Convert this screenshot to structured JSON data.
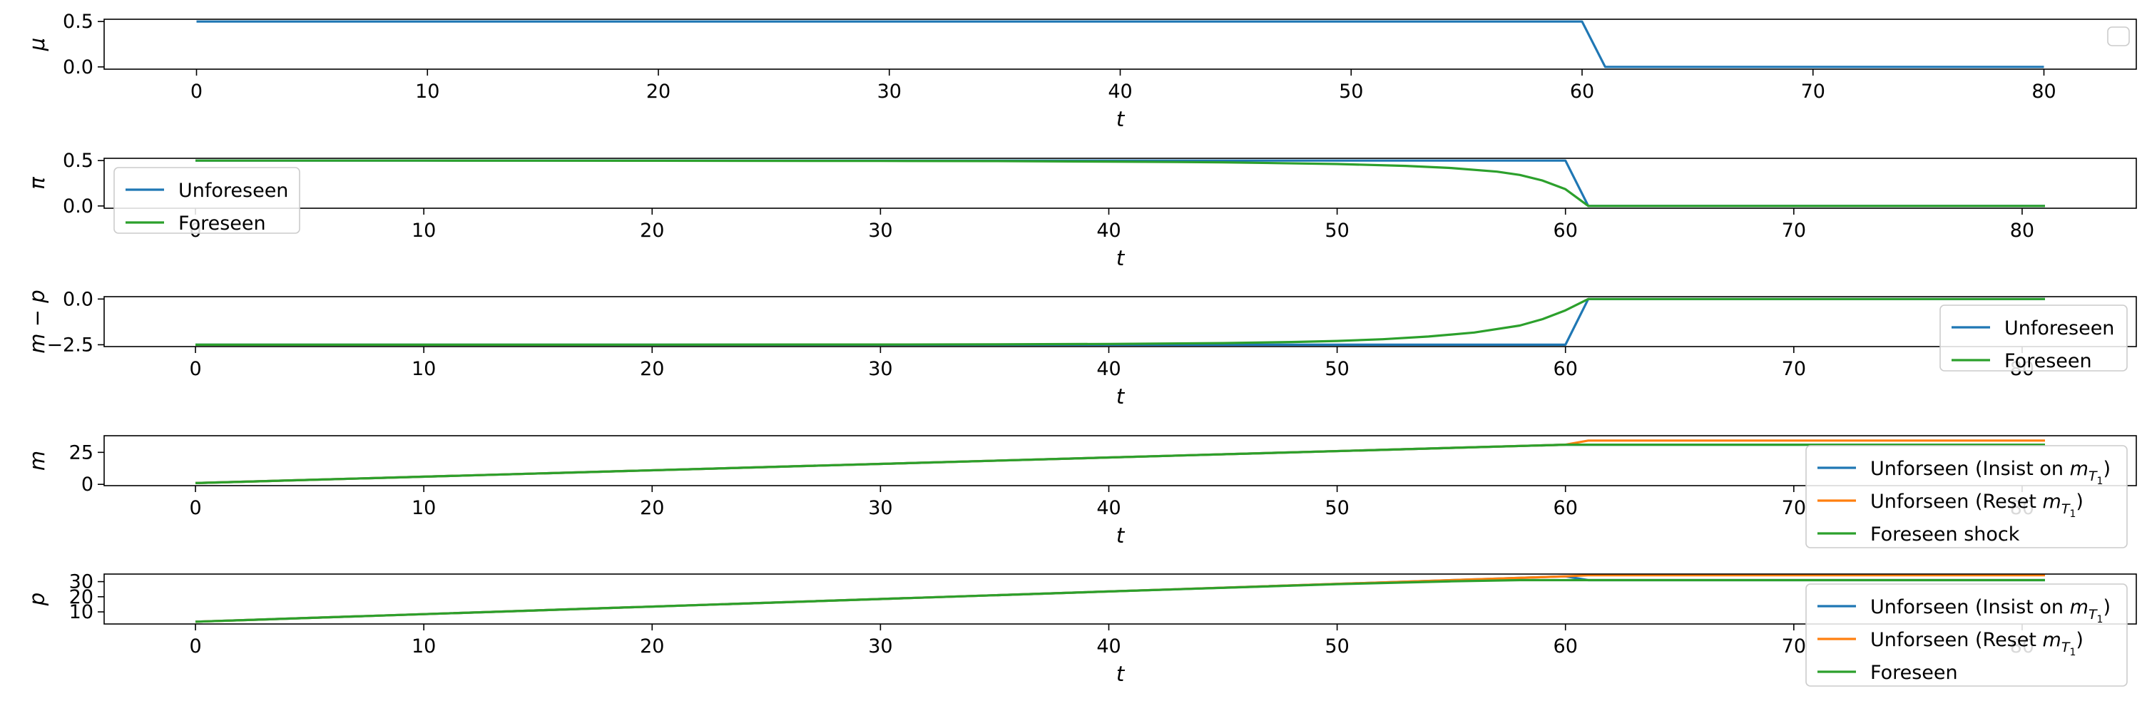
{
  "chart_data": [
    {
      "type": "line",
      "ylabel": "μ",
      "xlabel": "t",
      "xlim": [
        -4,
        84
      ],
      "ylim": [
        -0.025,
        0.525
      ],
      "xticks": [
        0,
        10,
        20,
        30,
        40,
        50,
        60,
        70,
        80
      ],
      "yticks": [
        {
          "v": 0.0,
          "label": "0.0"
        },
        {
          "v": 0.5,
          "label": "0.5"
        }
      ],
      "legend": {
        "placement": "top-right",
        "entries": []
      },
      "series": [
        {
          "color": "#1f77b4",
          "points": [
            [
              0,
              0.5
            ],
            [
              60,
              0.5
            ],
            [
              61,
              0.0
            ],
            [
              80,
              0.0
            ]
          ]
        }
      ]
    },
    {
      "type": "line",
      "ylabel": "π",
      "xlabel": "t",
      "xlim": [
        -4,
        85
      ],
      "ylim": [
        -0.025,
        0.525
      ],
      "xticks": [
        0,
        10,
        20,
        30,
        40,
        50,
        60,
        70,
        80
      ],
      "yticks": [
        {
          "v": 0.0,
          "label": "0.0"
        },
        {
          "v": 0.5,
          "label": "0.5"
        }
      ],
      "legend": {
        "placement": "bottom-left",
        "entries": [
          {
            "label": "Unforeseen",
            "color": "#1f77b4"
          },
          {
            "label": "Foreseen",
            "color": "#2ca02c"
          }
        ]
      },
      "series": [
        {
          "name": "Unforeseen",
          "color": "#1f77b4",
          "points": [
            [
              0,
              0.5
            ],
            [
              60,
              0.5
            ],
            [
              61,
              0.0
            ],
            [
              81,
              0.0
            ]
          ]
        },
        {
          "name": "Foreseen",
          "color": "#2ca02c",
          "points": [
            [
              0,
              0.5
            ],
            [
              10,
              0.4995
            ],
            [
              20,
              0.4985
            ],
            [
              30,
              0.496
            ],
            [
              35,
              0.494
            ],
            [
              40,
              0.489
            ],
            [
              45,
              0.481
            ],
            [
              50,
              0.462
            ],
            [
              53,
              0.442
            ],
            [
              55,
              0.418
            ],
            [
              57,
              0.378
            ],
            [
              58,
              0.342
            ],
            [
              59,
              0.28
            ],
            [
              60,
              0.185
            ],
            [
              61,
              0.0
            ],
            [
              81,
              0.0
            ]
          ]
        }
      ]
    },
    {
      "type": "line",
      "ylabel": "m − p",
      "xlabel": "t",
      "xlim": [
        -4,
        85
      ],
      "ylim": [
        -2.6,
        0.13
      ],
      "xticks": [
        0,
        10,
        20,
        30,
        40,
        50,
        60,
        70,
        80
      ],
      "yticks": [
        {
          "v": -2.5,
          "label": "−2.5"
        },
        {
          "v": 0.0,
          "label": "0.0"
        }
      ],
      "legend": {
        "placement": "bottom-right",
        "entries": [
          {
            "label": "Unforeseen",
            "color": "#1f77b4"
          },
          {
            "label": "Foreseen",
            "color": "#2ca02c"
          }
        ]
      },
      "series": [
        {
          "name": "Unforeseen",
          "color": "#1f77b4",
          "points": [
            [
              0,
              -2.5
            ],
            [
              60,
              -2.5
            ],
            [
              61,
              0.0
            ],
            [
              81,
              0.0
            ]
          ]
        },
        {
          "name": "Foreseen",
          "color": "#2ca02c",
          "points": [
            [
              0,
              -2.5
            ],
            [
              10,
              -2.499
            ],
            [
              20,
              -2.496
            ],
            [
              30,
              -2.488
            ],
            [
              35,
              -2.478
            ],
            [
              40,
              -2.455
            ],
            [
              45,
              -2.41
            ],
            [
              48,
              -2.35
            ],
            [
              50,
              -2.29
            ],
            [
              52,
              -2.2
            ],
            [
              54,
              -2.05
            ],
            [
              56,
              -1.83
            ],
            [
              58,
              -1.45
            ],
            [
              59,
              -1.1
            ],
            [
              60,
              -0.62
            ],
            [
              61,
              0.0
            ],
            [
              81,
              0.0
            ]
          ]
        }
      ]
    },
    {
      "type": "line",
      "ylabel": "m",
      "xlabel": "t",
      "xlim": [
        -4,
        85
      ],
      "ylim": [
        -1,
        38
      ],
      "xticks": [
        0,
        10,
        20,
        30,
        40,
        50,
        60,
        70,
        80
      ],
      "yticks": [
        {
          "v": 0,
          "label": "0"
        },
        {
          "v": 25,
          "label": "25"
        }
      ],
      "legend": {
        "placement": "bottom-right",
        "entries": [
          {
            "label": "Unforseen (Insist on ",
            "sub": "T",
            "subsub": "1",
            "tail": ")",
            "color": "#1f77b4"
          },
          {
            "label": "Unforseen (Reset ",
            "sub": "T",
            "subsub": "1",
            "tail": ")",
            "color": "#ff7f0e"
          },
          {
            "label": "Foreseen shock",
            "color": "#2ca02c"
          }
        ]
      },
      "series": [
        {
          "name": "Unforseen (Insist on m_T1)",
          "color": "#1f77b4",
          "points": [
            [
              0,
              1.0
            ],
            [
              60,
              31.0
            ],
            [
              61,
              31.0
            ],
            [
              81,
              31.0
            ]
          ]
        },
        {
          "name": "Unforseen (Reset m_T1)",
          "color": "#ff7f0e",
          "points": [
            [
              0,
              1.0
            ],
            [
              60,
              31.0
            ],
            [
              61,
              34.2
            ],
            [
              81,
              34.2
            ]
          ]
        },
        {
          "name": "Foreseen shock",
          "color": "#2ca02c",
          "points": [
            [
              0,
              1.0
            ],
            [
              60,
              31.0
            ],
            [
              61,
              31.0
            ],
            [
              81,
              31.0
            ]
          ]
        }
      ]
    },
    {
      "type": "line",
      "ylabel": "p",
      "xlabel": "t",
      "xlim": [
        -4,
        85
      ],
      "ylim": [
        2,
        35
      ],
      "xticks": [
        0,
        10,
        20,
        30,
        40,
        50,
        60,
        70,
        80
      ],
      "yticks": [
        {
          "v": 10,
          "label": "10"
        },
        {
          "v": 20,
          "label": "20"
        },
        {
          "v": 30,
          "label": "30"
        }
      ],
      "legend": {
        "placement": "bottom-right",
        "entries": [
          {
            "label": "Unforseen (Insist on ",
            "sub": "T",
            "subsub": "1",
            "tail": ")",
            "color": "#1f77b4"
          },
          {
            "label": "Unforseen (Reset ",
            "sub": "T",
            "subsub": "1",
            "tail": ")",
            "color": "#ff7f0e"
          },
          {
            "label": "Foreseen",
            "color": "#2ca02c"
          }
        ]
      },
      "series": [
        {
          "name": "Unforseen (Insist on m_T1)",
          "color": "#1f77b4",
          "points": [
            [
              0,
              3.5
            ],
            [
              60,
              33.5
            ],
            [
              61,
              31.0
            ],
            [
              81,
              31.0
            ]
          ]
        },
        {
          "name": "Unforseen (Reset m_T1)",
          "color": "#ff7f0e",
          "points": [
            [
              0,
              3.5
            ],
            [
              60,
              33.5
            ],
            [
              61,
              34.2
            ],
            [
              81,
              34.2
            ]
          ]
        },
        {
          "name": "Foreseen",
          "color": "#2ca02c",
          "points": [
            [
              0,
              3.5
            ],
            [
              10,
              8.5
            ],
            [
              20,
              13.5
            ],
            [
              30,
              18.5
            ],
            [
              40,
              23.5
            ],
            [
              50,
              28.3
            ],
            [
              55,
              30.2
            ],
            [
              58,
              31.0
            ],
            [
              60,
              31.0
            ],
            [
              61,
              31.0
            ],
            [
              81,
              31.0
            ]
          ]
        }
      ]
    }
  ]
}
